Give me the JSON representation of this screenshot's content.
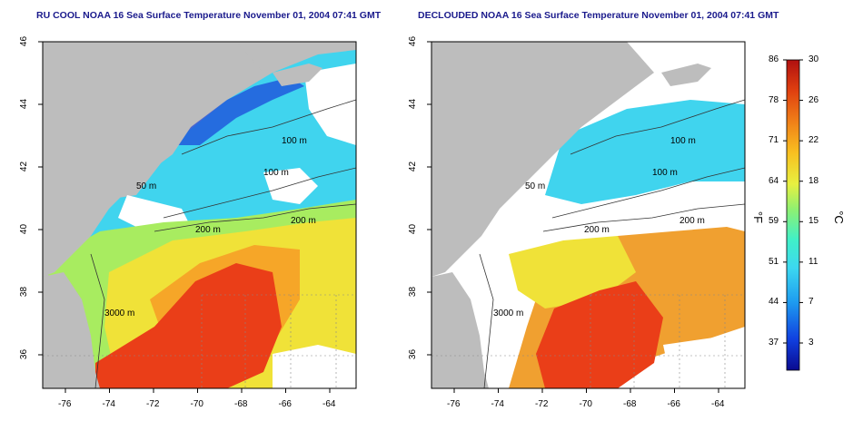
{
  "panels": [
    {
      "id": "raw",
      "title": "RU COOL NOAA 16 Sea Surface Temperature November 01, 2004 07:41 GMT"
    },
    {
      "id": "decloud",
      "title": "DECLOUDED NOAA 16 Sea Surface Temperature November 01, 2004 07:41 GMT"
    }
  ],
  "axes": {
    "x_ticks": [
      "-76",
      "-74",
      "-72",
      "-70",
      "-68",
      "-66",
      "-64"
    ],
    "y_ticks": [
      "46",
      "44",
      "42",
      "40",
      "38",
      "36"
    ]
  },
  "contour_labels": {
    "left": [
      "100 m",
      "100 m",
      "200 m",
      "200 m",
      "3000 m",
      "50 m"
    ],
    "right": [
      "100 m",
      "100 m",
      "200 m",
      "200 m",
      "3000 m",
      "50 m"
    ]
  },
  "colorbar": {
    "fahrenheit_ticks": [
      "86",
      "78",
      "71",
      "64",
      "59",
      "51",
      "44",
      "37"
    ],
    "celsius_ticks": [
      "30",
      "26",
      "22",
      "18",
      "15",
      "11",
      "7",
      "3"
    ],
    "unit_f": "°F",
    "unit_c": "°C",
    "colors": [
      "#0a0a8f",
      "#1040e0",
      "#1e9cf0",
      "#3cd8f0",
      "#40f0c8",
      "#90f070",
      "#e8f040",
      "#f8c020",
      "#f08018",
      "#e04010",
      "#b01010"
    ]
  },
  "colors": {
    "land": "#bdbdbd",
    "cloud": "#ffffff",
    "cold": "#3cd2ec",
    "mid": "#e8e838",
    "warm": "#ee3a18",
    "title": "#1a1a8c"
  }
}
